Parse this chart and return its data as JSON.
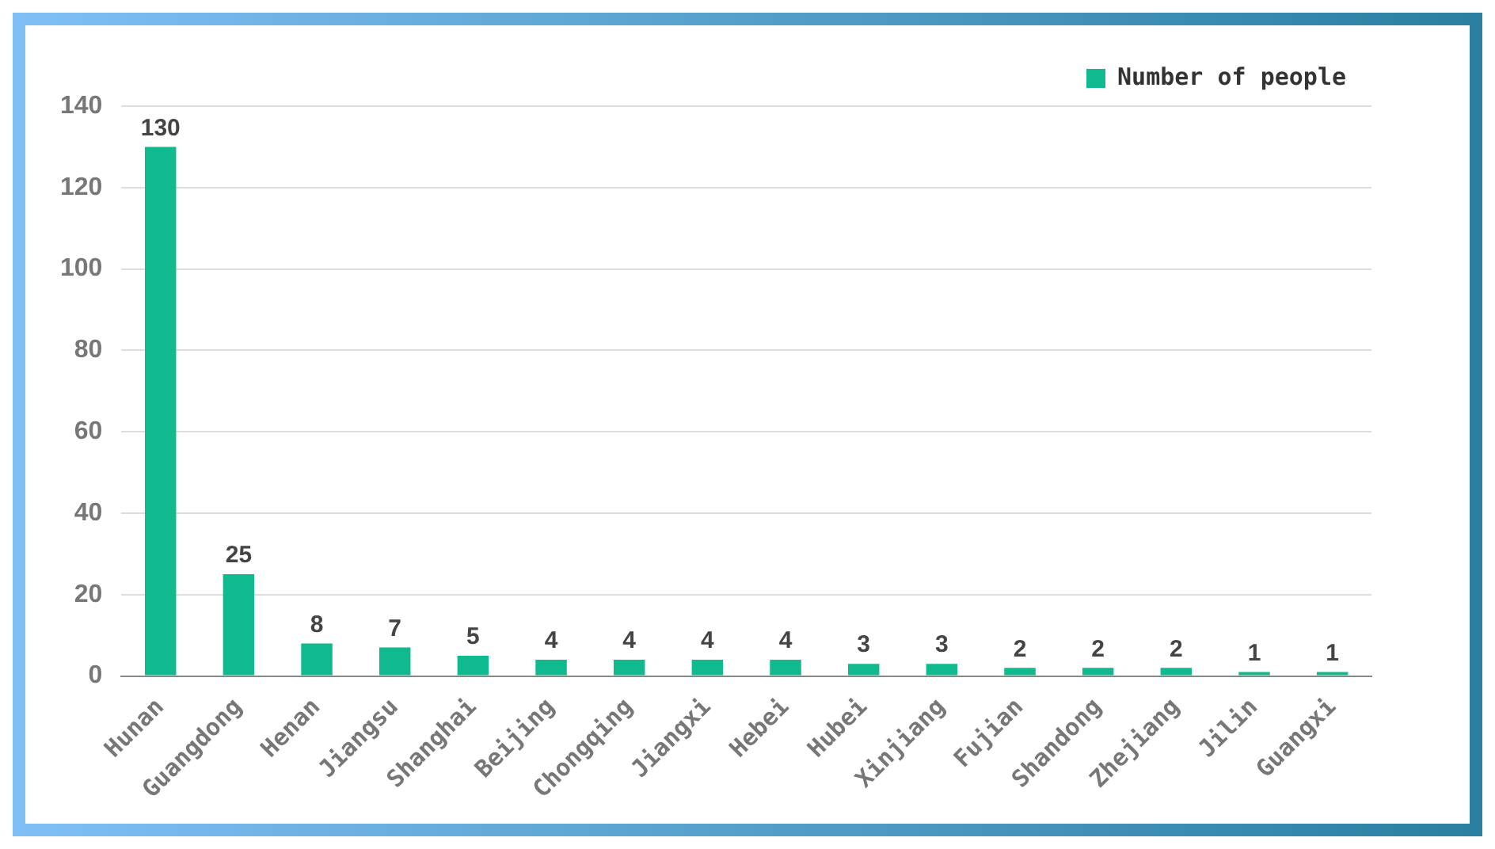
{
  "chart_data": {
    "type": "bar",
    "categories": [
      "Hunan",
      "Guangdong",
      "Henan",
      "Jiangsu",
      "Shanghai",
      "Beijing",
      "Chongqing",
      "Jiangxi",
      "Hebei",
      "Hubei",
      "Xinjiang",
      "Fujian",
      "Shandong",
      "Zhejiang",
      "Jilin",
      "Guangxi"
    ],
    "series": [
      {
        "name": "Number of people",
        "color": "#10b98e",
        "values": [
          130,
          25,
          8,
          7,
          5,
          4,
          4,
          4,
          4,
          3,
          3,
          2,
          2,
          2,
          1,
          1
        ]
      }
    ],
    "ylim": [
      0,
      140
    ],
    "yticks": [
      0,
      20,
      40,
      60,
      80,
      100,
      120,
      140
    ],
    "grid": "y",
    "legend": "top right",
    "data_labels": true
  }
}
